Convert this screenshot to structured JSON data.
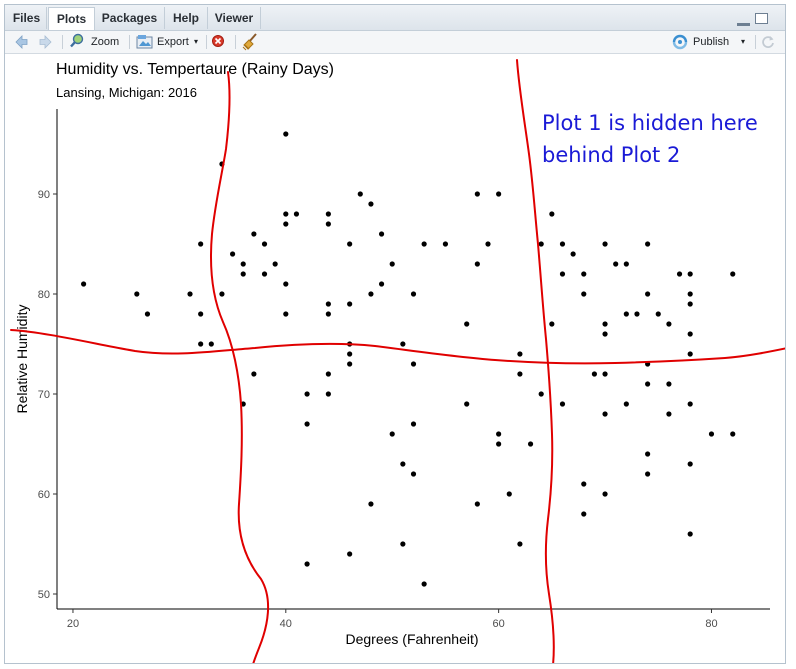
{
  "tabs": [
    {
      "label": "Files"
    },
    {
      "label": "Plots"
    },
    {
      "label": "Packages"
    },
    {
      "label": "Help"
    },
    {
      "label": "Viewer"
    }
  ],
  "toolbar": {
    "zoom_label": "Zoom",
    "export_label": "Export",
    "publish_label": "Publish"
  },
  "annotation": {
    "line1": "Plot 1 is hidden here",
    "line2": "behind Plot 2",
    "color": "#1a1ad6",
    "stroke_color": "#e00000"
  },
  "chart_data": {
    "type": "scatter",
    "title": "Humidity vs. Tempertaure (Rainy Days)",
    "subtitle": "Lansing, Michigan: 2016",
    "xlabel": "Degrees (Fahrenheit)",
    "ylabel": "Relative Humidity",
    "xlim": [
      18.5,
      85.5
    ],
    "ylim": [
      48.5,
      98.5
    ],
    "xticks": [
      20,
      40,
      60,
      80
    ],
    "yticks": [
      50,
      60,
      70,
      80,
      90
    ],
    "grid": false,
    "point_color": "#000000",
    "points": [
      [
        21,
        81
      ],
      [
        26,
        80
      ],
      [
        27,
        78
      ],
      [
        31,
        80
      ],
      [
        32,
        85
      ],
      [
        32,
        78
      ],
      [
        32,
        75
      ],
      [
        33,
        75
      ],
      [
        34,
        93
      ],
      [
        34,
        80
      ],
      [
        35,
        84
      ],
      [
        36,
        83
      ],
      [
        36,
        82
      ],
      [
        36,
        69
      ],
      [
        37,
        86
      ],
      [
        37,
        72
      ],
      [
        38,
        85
      ],
      [
        38,
        82
      ],
      [
        39,
        83
      ],
      [
        40,
        96
      ],
      [
        40,
        88
      ],
      [
        40,
        87
      ],
      [
        40,
        81
      ],
      [
        40,
        78
      ],
      [
        41,
        88
      ],
      [
        42,
        70
      ],
      [
        42,
        67
      ],
      [
        42,
        53
      ],
      [
        44,
        88
      ],
      [
        44,
        87
      ],
      [
        44,
        79
      ],
      [
        44,
        78
      ],
      [
        44,
        72
      ],
      [
        44,
        70
      ],
      [
        46,
        85
      ],
      [
        46,
        79
      ],
      [
        46,
        75
      ],
      [
        46,
        74
      ],
      [
        46,
        73
      ],
      [
        46,
        54
      ],
      [
        47,
        90
      ],
      [
        48,
        89
      ],
      [
        48,
        80
      ],
      [
        48,
        59
      ],
      [
        49,
        86
      ],
      [
        49,
        81
      ],
      [
        50,
        83
      ],
      [
        50,
        66
      ],
      [
        51,
        75
      ],
      [
        51,
        63
      ],
      [
        51,
        55
      ],
      [
        52,
        80
      ],
      [
        52,
        73
      ],
      [
        52,
        67
      ],
      [
        52,
        62
      ],
      [
        53,
        85
      ],
      [
        53,
        51
      ],
      [
        55,
        85
      ],
      [
        57,
        77
      ],
      [
        57,
        69
      ],
      [
        58,
        90
      ],
      [
        58,
        83
      ],
      [
        58,
        59
      ],
      [
        59,
        85
      ],
      [
        60,
        90
      ],
      [
        60,
        66
      ],
      [
        60,
        65
      ],
      [
        61,
        60
      ],
      [
        62,
        74
      ],
      [
        62,
        72
      ],
      [
        62,
        55
      ],
      [
        63,
        65
      ],
      [
        64,
        85
      ],
      [
        64,
        70
      ],
      [
        65,
        88
      ],
      [
        65,
        77
      ],
      [
        66,
        85
      ],
      [
        66,
        82
      ],
      [
        66,
        69
      ],
      [
        67,
        84
      ],
      [
        68,
        82
      ],
      [
        68,
        80
      ],
      [
        68,
        61
      ],
      [
        68,
        58
      ],
      [
        69,
        72
      ],
      [
        70,
        85
      ],
      [
        70,
        77
      ],
      [
        70,
        76
      ],
      [
        70,
        72
      ],
      [
        70,
        68
      ],
      [
        70,
        60
      ],
      [
        71,
        83
      ],
      [
        72,
        83
      ],
      [
        72,
        78
      ],
      [
        72,
        69
      ],
      [
        73,
        78
      ],
      [
        74,
        85
      ],
      [
        74,
        80
      ],
      [
        74,
        73
      ],
      [
        74,
        71
      ],
      [
        74,
        64
      ],
      [
        74,
        62
      ],
      [
        75,
        78
      ],
      [
        76,
        77
      ],
      [
        76,
        71
      ],
      [
        76,
        68
      ],
      [
        77,
        82
      ],
      [
        78,
        82
      ],
      [
        78,
        80
      ],
      [
        78,
        79
      ],
      [
        78,
        76
      ],
      [
        78,
        74
      ],
      [
        78,
        69
      ],
      [
        78,
        63
      ],
      [
        78,
        56
      ],
      [
        80,
        66
      ],
      [
        82,
        82
      ],
      [
        82,
        66
      ]
    ]
  }
}
